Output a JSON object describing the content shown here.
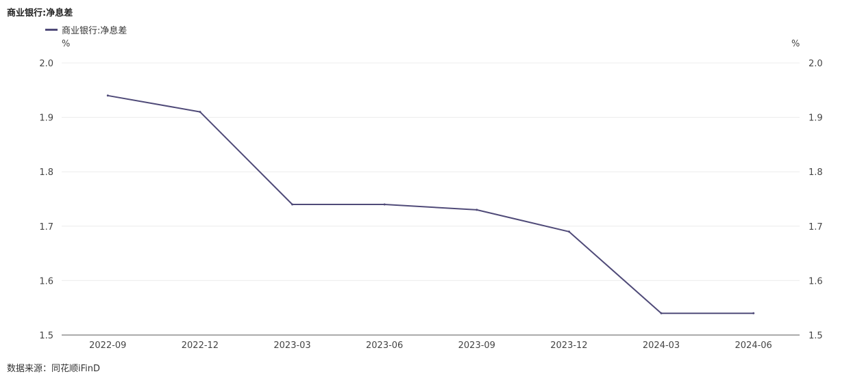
{
  "title": "商业银行:净息差",
  "source": "数据来源：同花顺iFinD",
  "chart_data": {
    "type": "line",
    "categories": [
      "2022-09",
      "2022-12",
      "2023-03",
      "2023-06",
      "2023-09",
      "2023-12",
      "2024-03",
      "2024-06"
    ],
    "series": [
      {
        "name": "商业银行:净息差",
        "values": [
          1.94,
          1.91,
          1.74,
          1.74,
          1.73,
          1.69,
          1.54,
          1.54
        ],
        "color": "#4f4a78"
      }
    ],
    "yunit_left": "%",
    "yunit_right": "%",
    "ylim": [
      1.5,
      2.0
    ],
    "yticks": [
      "1.5",
      "1.6",
      "1.7",
      "1.8",
      "1.9",
      "2.0"
    ],
    "grid": true,
    "legend_position": "top-left"
  }
}
